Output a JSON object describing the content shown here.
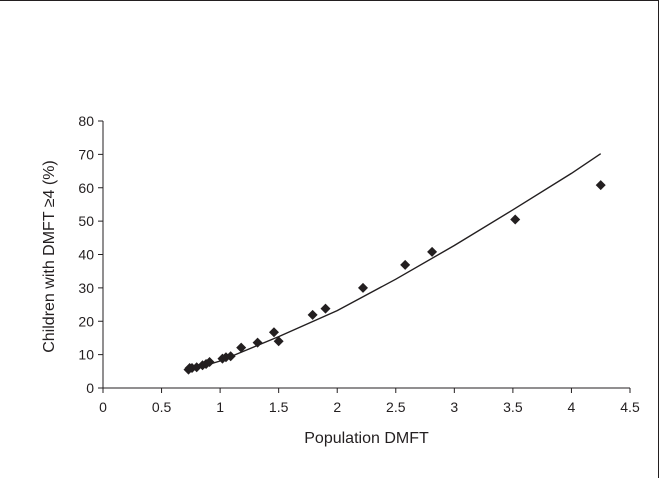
{
  "chart_data": {
    "type": "scatter",
    "title": "",
    "xlabel": "Population DMFT",
    "ylabel": "Children with DMFT ≥4 (%)",
    "xlim": [
      0,
      4.5
    ],
    "ylim": [
      0,
      80
    ],
    "x_ticks": [
      0,
      0.5,
      1,
      1.5,
      2,
      2.5,
      3,
      3.5,
      4,
      4.5
    ],
    "y_ticks": [
      0,
      10,
      20,
      30,
      40,
      50,
      60,
      70,
      80
    ],
    "x_tick_labels": [
      "0",
      "0.5",
      "1",
      "1.5",
      "2",
      "2.5",
      "3",
      "3.5",
      "4",
      "4.5"
    ],
    "y_tick_labels": [
      "0",
      "10",
      "20",
      "30",
      "40",
      "50",
      "60",
      "70",
      "80"
    ],
    "grid": false,
    "legend": "none",
    "marker": "diamond",
    "marker_color": "#231f20",
    "series": [
      {
        "points": [
          {
            "x": 0.73,
            "y": 5.5
          },
          {
            "x": 0.74,
            "y": 6.0
          },
          {
            "x": 0.76,
            "y": 6.0
          },
          {
            "x": 0.8,
            "y": 6.2
          },
          {
            "x": 0.85,
            "y": 6.8
          },
          {
            "x": 0.88,
            "y": 7.2
          },
          {
            "x": 0.91,
            "y": 7.8
          },
          {
            "x": 1.02,
            "y": 8.8
          },
          {
            "x": 1.05,
            "y": 9.2
          },
          {
            "x": 1.09,
            "y": 9.5
          },
          {
            "x": 1.18,
            "y": 12.1
          },
          {
            "x": 1.32,
            "y": 13.6
          },
          {
            "x": 1.46,
            "y": 16.7
          },
          {
            "x": 1.5,
            "y": 14.0
          },
          {
            "x": 1.79,
            "y": 21.9
          },
          {
            "x": 1.9,
            "y": 23.8
          },
          {
            "x": 2.22,
            "y": 30.0
          },
          {
            "x": 2.58,
            "y": 36.9
          },
          {
            "x": 2.81,
            "y": 40.8
          },
          {
            "x": 3.52,
            "y": 50.5
          },
          {
            "x": 4.25,
            "y": 60.8
          }
        ]
      }
    ],
    "trendline": {
      "type": "line",
      "color": "#231f20",
      "points": [
        {
          "x": 0.73,
          "y": 5.2
        },
        {
          "x": 1.0,
          "y": 8.1
        },
        {
          "x": 1.5,
          "y": 15.4
        },
        {
          "x": 2.0,
          "y": 23.2
        },
        {
          "x": 2.5,
          "y": 32.6
        },
        {
          "x": 3.0,
          "y": 42.7
        },
        {
          "x": 3.5,
          "y": 53.4
        },
        {
          "x": 4.0,
          "y": 64.3
        },
        {
          "x": 4.25,
          "y": 70.2
        }
      ]
    }
  }
}
